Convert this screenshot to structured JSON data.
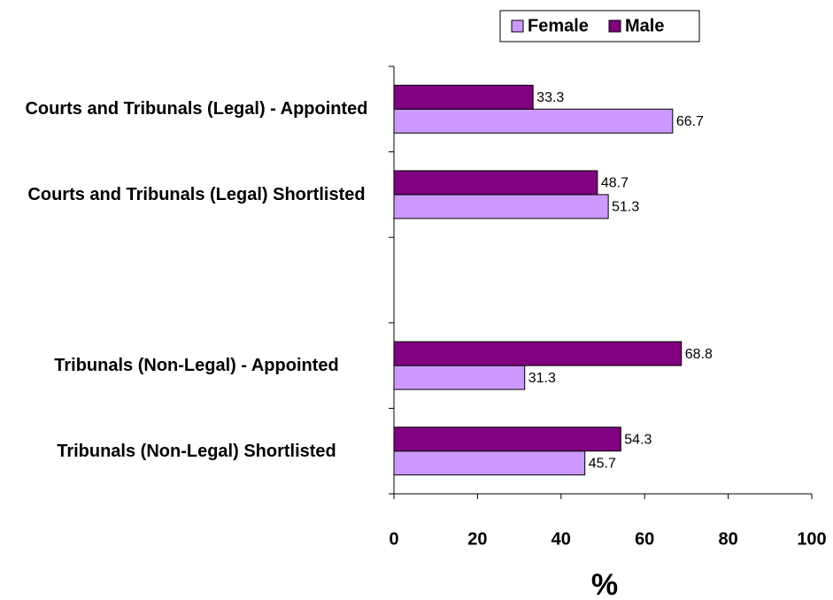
{
  "chart_data": {
    "type": "barh",
    "categories": [
      "Courts and Tribunals (Legal) - Appointed",
      "Courts and Tribunals (Legal) Shortlisted",
      null,
      "Tribunals (Non-Legal) - Appointed",
      "Tribunals (Non-Legal) Shortlisted"
    ],
    "series": [
      {
        "name": "Female",
        "color": "#cc99ff",
        "values": [
          66.7,
          51.3,
          null,
          31.3,
          45.7
        ]
      },
      {
        "name": "Male",
        "color": "#800080",
        "values": [
          33.3,
          48.7,
          null,
          68.8,
          54.3
        ]
      }
    ],
    "xlim": [
      0,
      100
    ],
    "xticks": [
      0,
      20,
      40,
      60,
      80,
      100
    ],
    "xlabel": "%",
    "legend": "top"
  }
}
